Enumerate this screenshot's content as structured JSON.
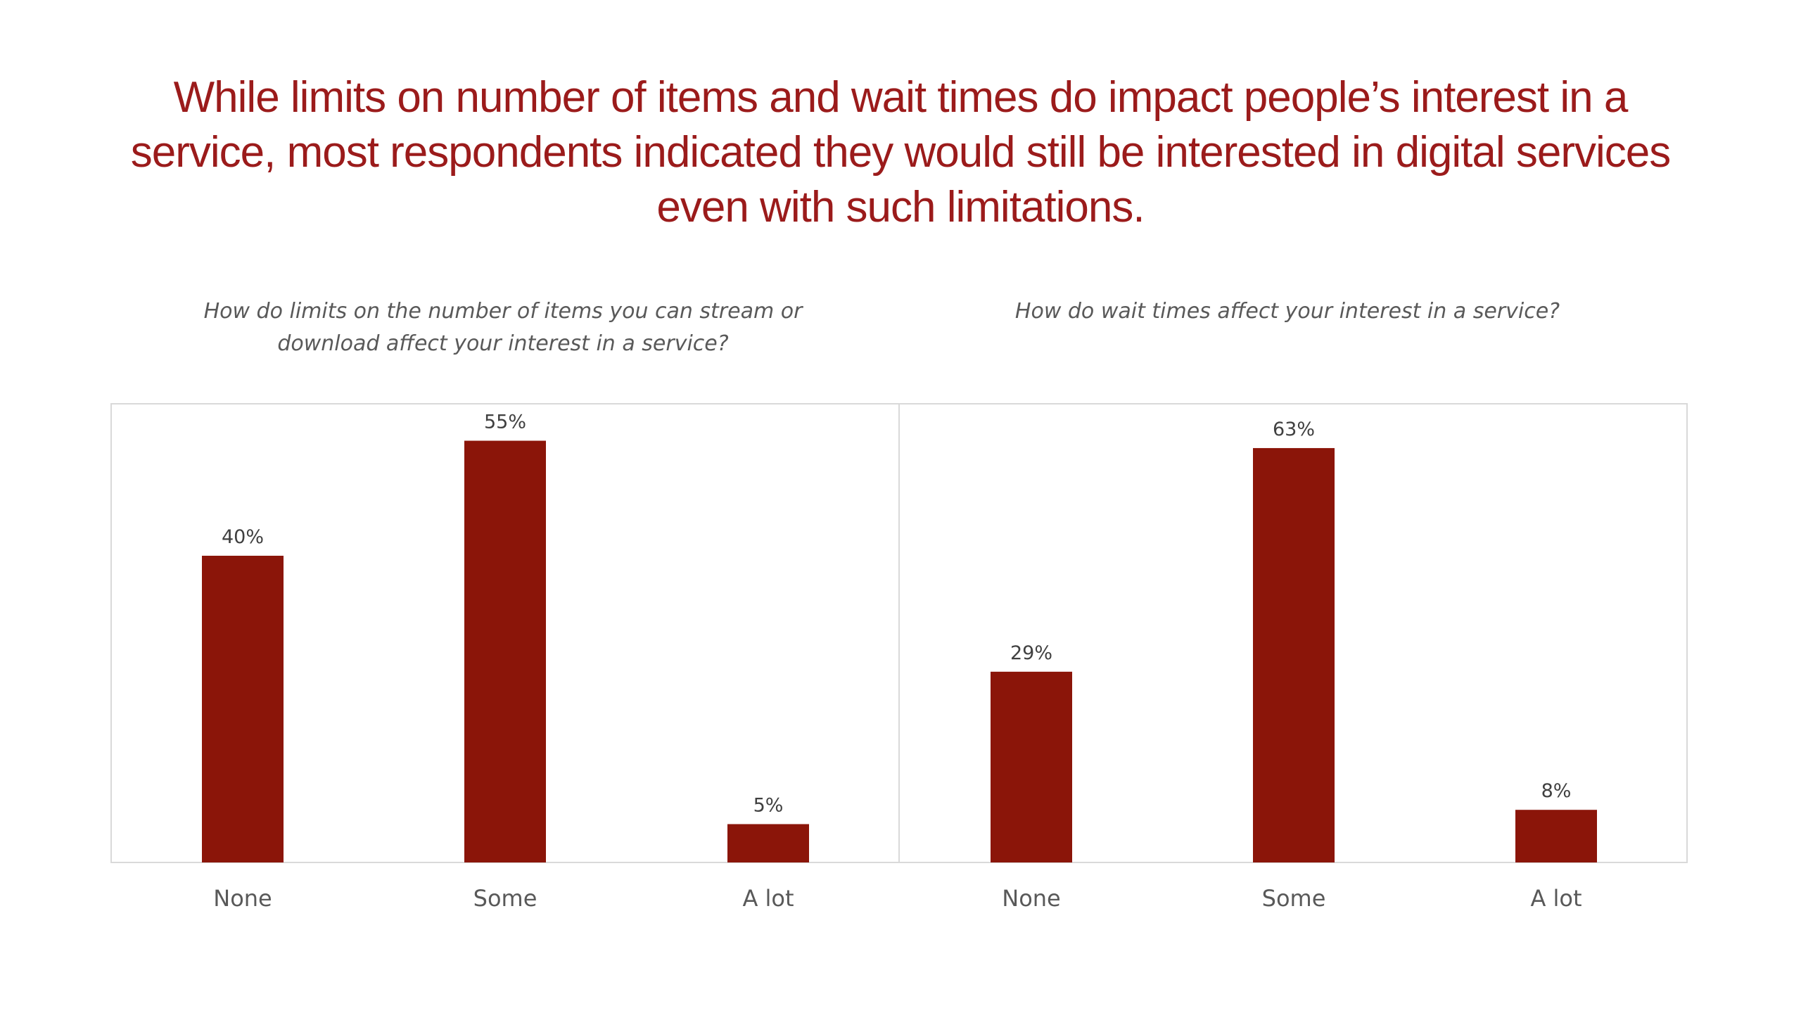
{
  "slide": {
    "title": "While limits on number of items and wait times do impact people’s interest in a service, most respondents indicated they would still be interested in digital services even with such limitations.",
    "title_color": "#9B1B1B"
  },
  "bar_color": "#8B1509",
  "chart_data": [
    {
      "type": "bar",
      "title": "How do limits on the number of items you can stream or download affect your interest in a service?",
      "categories": [
        "None",
        "Some",
        "A lot"
      ],
      "values": [
        40,
        55,
        5
      ],
      "data_labels": [
        "40%",
        "55%",
        "5%"
      ],
      "ylim": [
        0,
        60
      ],
      "grid": false,
      "legend": "none"
    },
    {
      "type": "bar",
      "title": "How do wait times affect your interest in a service?",
      "categories": [
        "None",
        "Some",
        "A lot"
      ],
      "values": [
        29,
        63,
        8
      ],
      "data_labels": [
        "29%",
        "63%",
        "8%"
      ],
      "ylim": [
        0,
        70
      ],
      "grid": false,
      "legend": "none"
    }
  ]
}
